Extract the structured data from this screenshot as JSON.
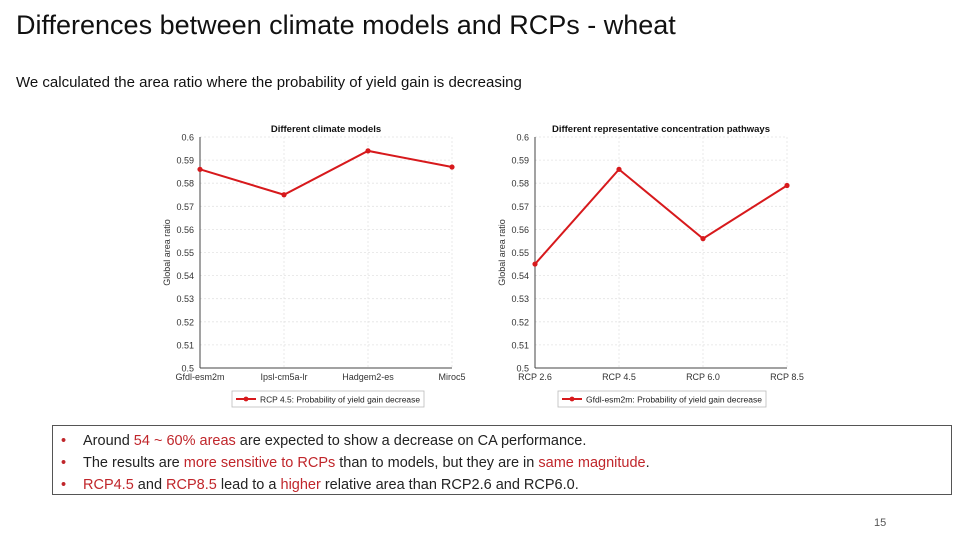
{
  "slide": {
    "title": "Differences between climate models and RCPs - wheat",
    "subtitle": "We calculated the area ratio where the probability of yield gain is decreasing",
    "page_number": "15",
    "accent_color": "#c0262b"
  },
  "bullets": [
    {
      "parts": [
        {
          "text": "Around ",
          "red": false
        },
        {
          "text": "54 ~ 60% areas",
          "red": true
        },
        {
          "text": " are expected to show a decrease on CA performance.",
          "red": false
        }
      ]
    },
    {
      "parts": [
        {
          "text": "The results are ",
          "red": false
        },
        {
          "text": "more sensitive to RCPs",
          "red": true
        },
        {
          "text": " than to models, but they are in ",
          "red": false
        },
        {
          "text": "same magnitude",
          "red": true
        },
        {
          "text": ".",
          "red": false
        }
      ]
    },
    {
      "parts": [
        {
          "text": "RCP4.5",
          "red": true
        },
        {
          "text": " and ",
          "red": false
        },
        {
          "text": "RCP8.5",
          "red": true
        },
        {
          "text": " lead to a ",
          "red": false
        },
        {
          "text": "higher",
          "red": true
        },
        {
          "text": " relative area than RCP2.6 and RCP6.0.",
          "red": false
        }
      ]
    }
  ],
  "chart_data": [
    {
      "type": "line",
      "title": "Different climate models",
      "xlabel": "",
      "ylabel": "Global area ratio",
      "categories": [
        "Gfdl-esm2m",
        "Ipsl-cm5a-lr",
        "Hadgem2-es",
        "Miroc5"
      ],
      "series": [
        {
          "name": "RCP 4.5: Probability of yield gain decrease",
          "values": [
            0.586,
            0.575,
            0.594,
            0.587
          ],
          "color": "#d7191c"
        }
      ],
      "ylim": [
        0.5,
        0.6
      ],
      "yticks": [
        "0.5",
        "0.51",
        "0.52",
        "0.53",
        "0.54",
        "0.55",
        "0.56",
        "0.57",
        "0.58",
        "0.59",
        "0.6"
      ],
      "grid": true,
      "legend": "bottom"
    },
    {
      "type": "line",
      "title": "Different representative concentration pathways",
      "xlabel": "",
      "ylabel": "Global area ratio",
      "categories": [
        "RCP 2.6",
        "RCP 4.5",
        "RCP 6.0",
        "RCP 8.5"
      ],
      "series": [
        {
          "name": "Gfdl-esm2m: Probability of yield gain decrease",
          "values": [
            0.545,
            0.586,
            0.556,
            0.579
          ],
          "color": "#d7191c"
        }
      ],
      "ylim": [
        0.5,
        0.6
      ],
      "yticks": [
        "0.5",
        "0.51",
        "0.52",
        "0.53",
        "0.54",
        "0.55",
        "0.56",
        "0.57",
        "0.58",
        "0.59",
        "0.6"
      ],
      "grid": true,
      "legend": "bottom"
    }
  ]
}
